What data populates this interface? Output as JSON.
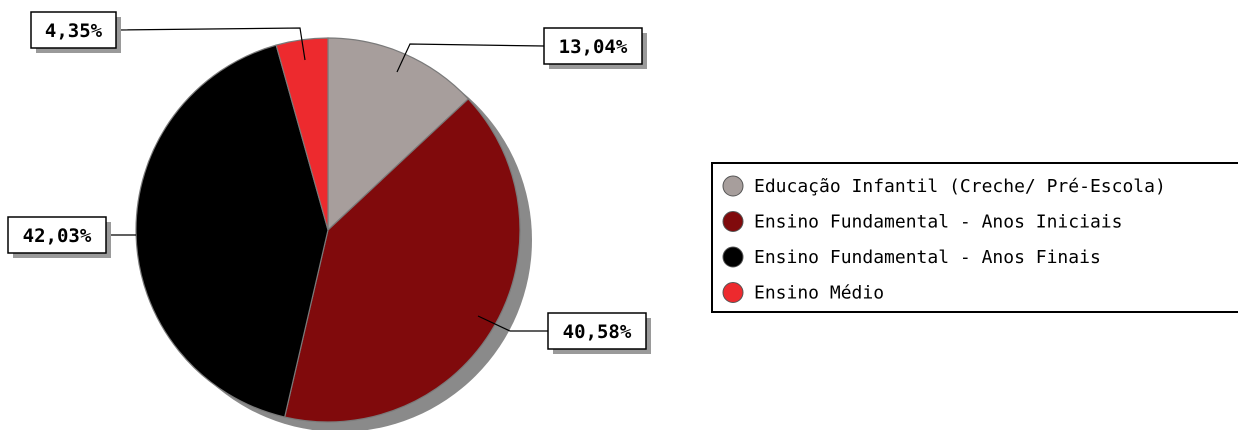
{
  "chart_data": {
    "type": "pie",
    "title": "",
    "categories": [
      "Educação Infantil (Creche/ Pré-Escola)",
      "Ensino Fundamental - Anos Iniciais",
      "Ensino Fundamental - Anos Finais",
      "Ensino Médio"
    ],
    "values": [
      13.04,
      40.58,
      42.03,
      4.35
    ],
    "labels": [
      "13,04%",
      "40,58%",
      "42,03%",
      "4,35%"
    ],
    "colors": [
      "#a79e9c",
      "#800a0c",
      "#000000",
      "#ed2a2e"
    ],
    "legend": "right",
    "shadow_color": "#8a8a8a"
  }
}
